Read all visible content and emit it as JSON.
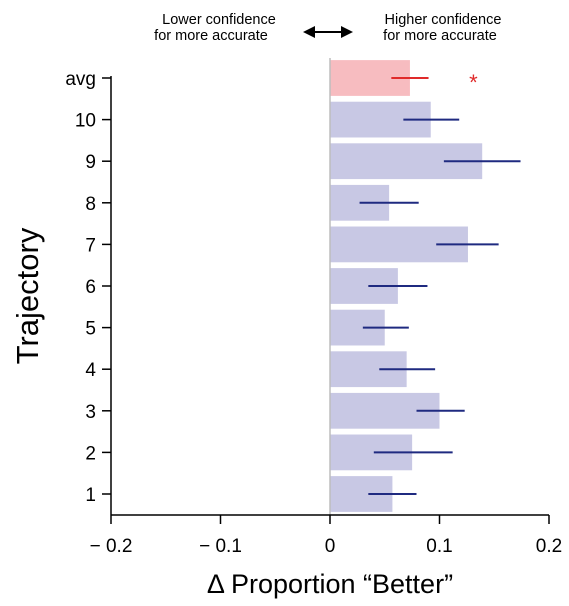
{
  "chart_data": {
    "type": "bar",
    "orientation": "horizontal",
    "xlabel": "Δ Proportion “Better”",
    "ylabel": "Trajectory",
    "xlim": [
      -0.2,
      0.2
    ],
    "xticks": [
      -0.2,
      -0.1,
      0,
      0.1,
      0.2
    ],
    "xtick_labels": [
      "− 0.2",
      "− 0.1",
      "0",
      "0.1",
      "0.2"
    ],
    "categories": [
      "1",
      "2",
      "3",
      "4",
      "5",
      "6",
      "7",
      "8",
      "9",
      "10",
      "avg"
    ],
    "values": [
      0.057,
      0.075,
      0.1,
      0.07,
      0.05,
      0.062,
      0.126,
      0.054,
      0.139,
      0.092,
      0.073
    ],
    "error_low": [
      0.035,
      0.04,
      0.079,
      0.045,
      0.03,
      0.035,
      0.097,
      0.027,
      0.104,
      0.067,
      0.056
    ],
    "error_high": [
      0.079,
      0.112,
      0.123,
      0.096,
      0.072,
      0.089,
      0.154,
      0.081,
      0.174,
      0.118,
      0.09
    ],
    "highlight_category": "avg",
    "significance_marker": "*",
    "annotation_left": [
      "Lower confidence",
      "for more accurate"
    ],
    "annotation_right": [
      "Higher confidence",
      "for more accurate"
    ],
    "colors": {
      "bar": "#c8c8e4",
      "error": "#1f2a80",
      "avg_bar": "#f7bcc0",
      "avg_error": "#e02a2a",
      "avg_label": "#e02a2a",
      "axis": "#000000",
      "zero_line": "#bdbdbd"
    },
    "grid": false,
    "legend": "none"
  }
}
